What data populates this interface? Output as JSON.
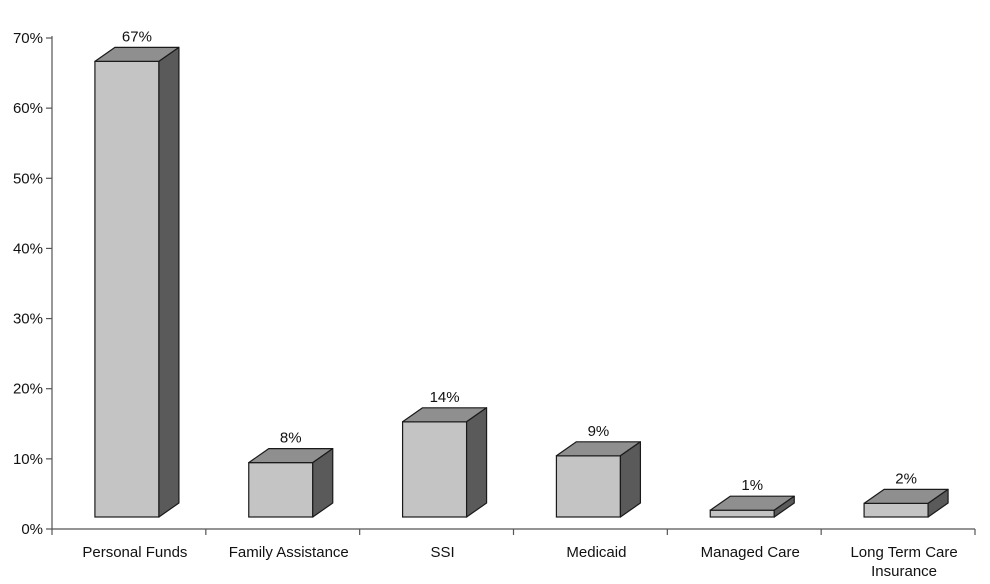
{
  "chart_data": {
    "type": "bar",
    "style": "3d",
    "categories": [
      "Personal Funds",
      "Family Assistance",
      "SSI",
      "Medicaid",
      "Managed Care",
      "Long Term Care Insurance"
    ],
    "category_lines": [
      [
        "Personal Funds"
      ],
      [
        "Family Assistance"
      ],
      [
        "SSI"
      ],
      [
        "Medicaid"
      ],
      [
        "Managed Care"
      ],
      [
        "Long Term Care",
        "Insurance"
      ]
    ],
    "values": [
      67,
      8,
      14,
      9,
      1,
      2
    ],
    "data_labels": [
      "67%",
      "8%",
      "14%",
      "9%",
      "1%",
      "2%"
    ],
    "title": "",
    "xlabel": "",
    "ylabel": "",
    "ylim": [
      0,
      70
    ],
    "yticks": [
      0,
      10,
      20,
      30,
      40,
      50,
      60,
      70
    ],
    "ytick_labels": [
      "0%",
      "10%",
      "20%",
      "30%",
      "40%",
      "50%",
      "60%",
      "70%"
    ],
    "grid": false,
    "legend": "none",
    "colors": {
      "front": "#c4c4c4",
      "top": "#8f8f8f",
      "side": "#5a5a5a",
      "edge": "#1a1a1a",
      "axis": "#555555"
    }
  }
}
